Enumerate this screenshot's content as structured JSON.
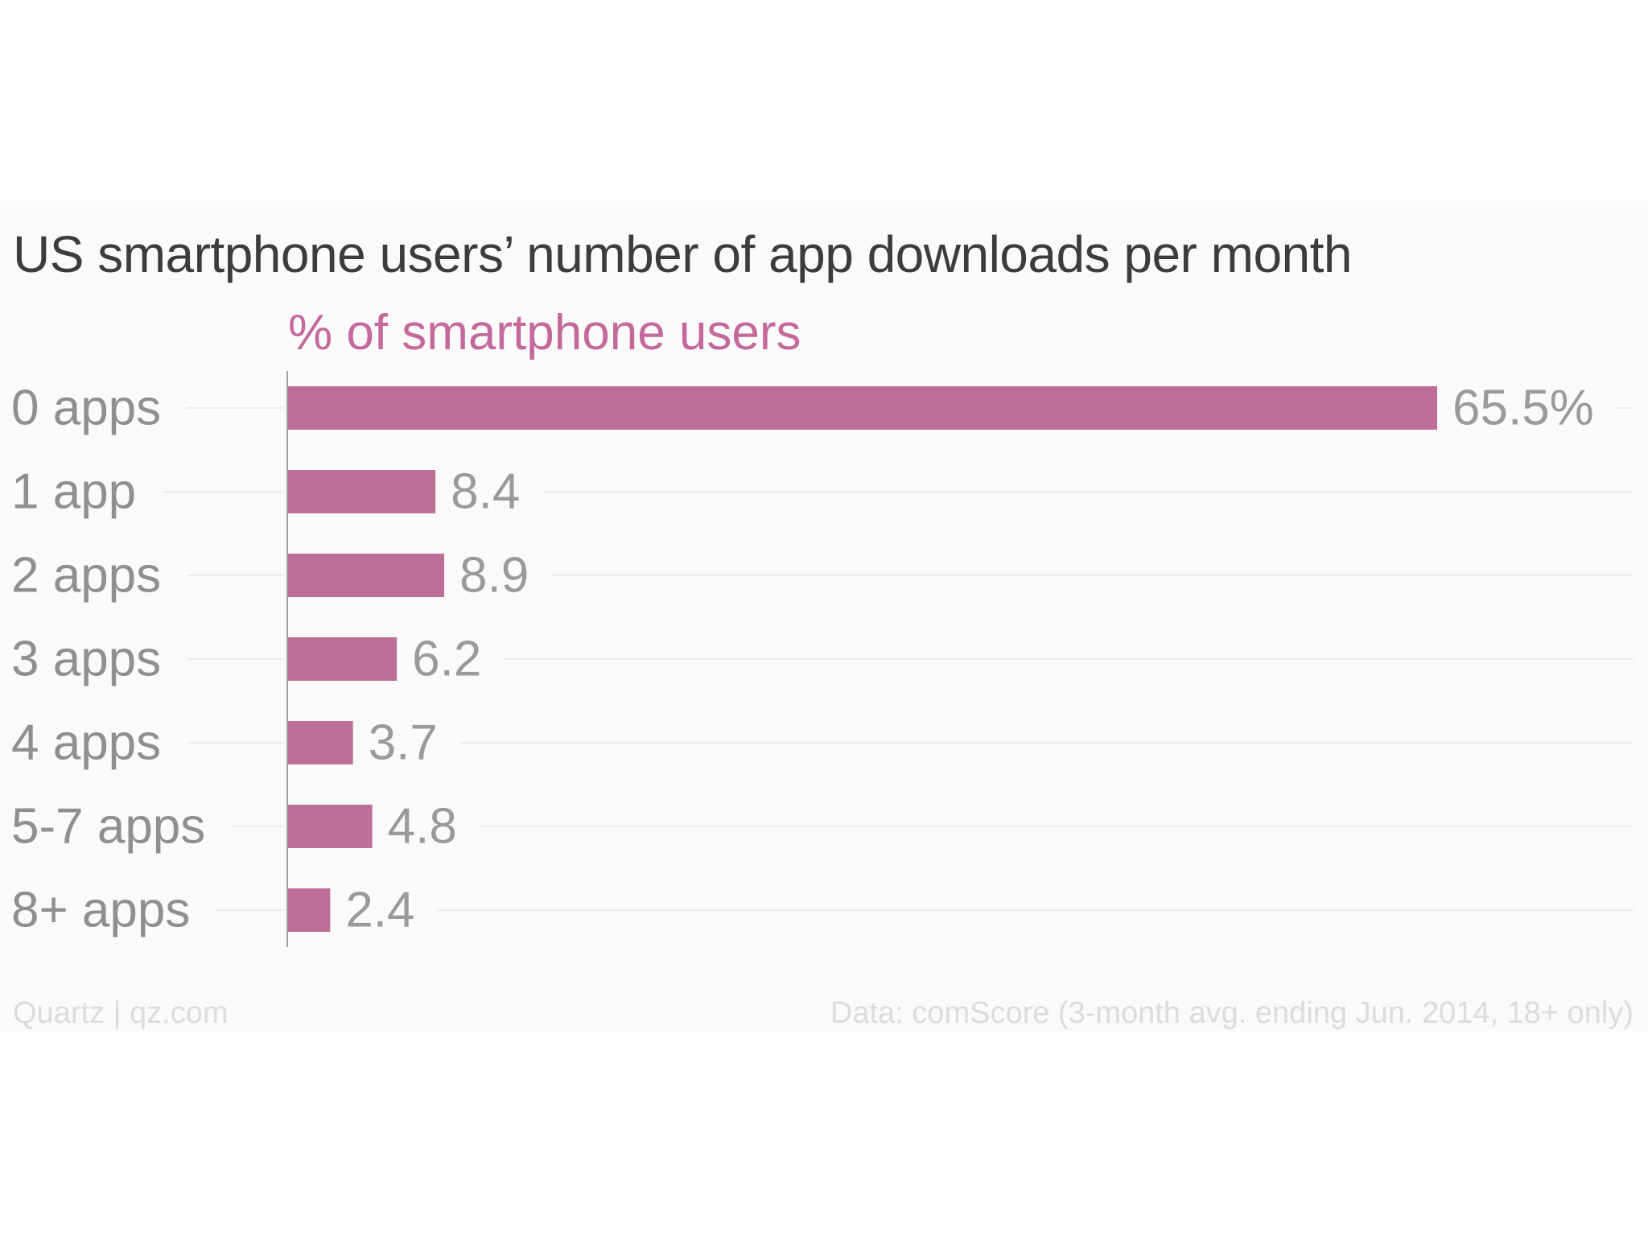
{
  "colors": {
    "bar": "#bd6e99",
    "axis_title": "#c4699b",
    "category_label": "#8f8f8f",
    "value_label": "#9a9a9a",
    "gridline": "#ececec",
    "axis_line": "#a0a0a0"
  },
  "chart_data": {
    "type": "bar",
    "orientation": "horizontal",
    "title": "US smartphone users’ number of app downloads per month",
    "xlabel": "% of smartphone users",
    "ylabel": "",
    "categories": [
      "0 apps",
      "1 app",
      "2 apps",
      "3 apps",
      "4 apps",
      "5-7 apps",
      "8+ apps"
    ],
    "values": [
      65.5,
      8.4,
      8.9,
      6.2,
      3.7,
      4.8,
      2.4
    ],
    "value_labels": [
      "65.5%",
      "8.4",
      "8.9",
      "6.2",
      "3.7",
      "4.8",
      "2.4"
    ],
    "xlim": [
      0,
      65.5
    ],
    "grid": true,
    "legend": "none"
  },
  "footer": {
    "source_left": "Quartz | qz.com",
    "source_right": "Data: comScore (3-month avg. ending Jun. 2014, 18+ only)"
  }
}
